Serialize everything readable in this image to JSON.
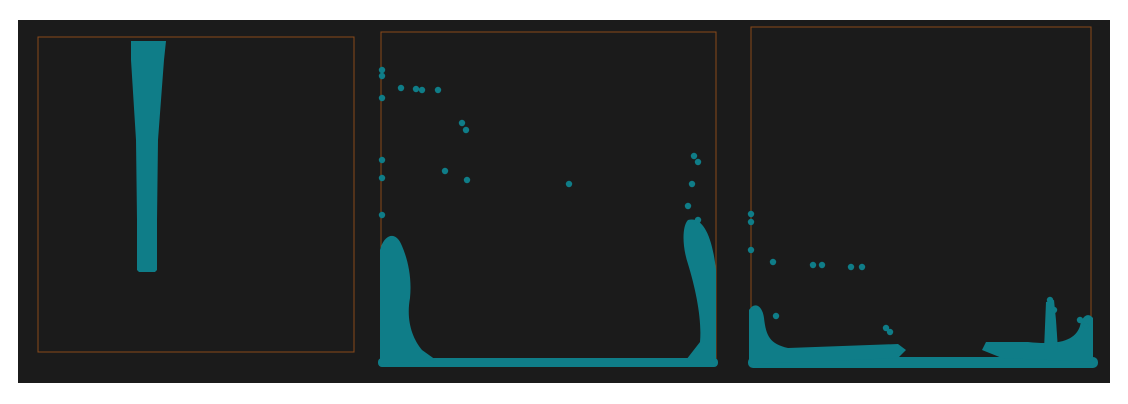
{
  "scene": {
    "description_kind": "fluid particle simulation frames",
    "frames": [
      {
        "id": "frame-1",
        "state": "falling-column"
      },
      {
        "id": "frame-2",
        "state": "splash-up-walls"
      },
      {
        "id": "frame-3",
        "state": "settling-pool"
      }
    ]
  },
  "colors": {
    "background": "#1b1b1b",
    "container_border": "#8a4a1a",
    "particle": "#0f7d88"
  }
}
